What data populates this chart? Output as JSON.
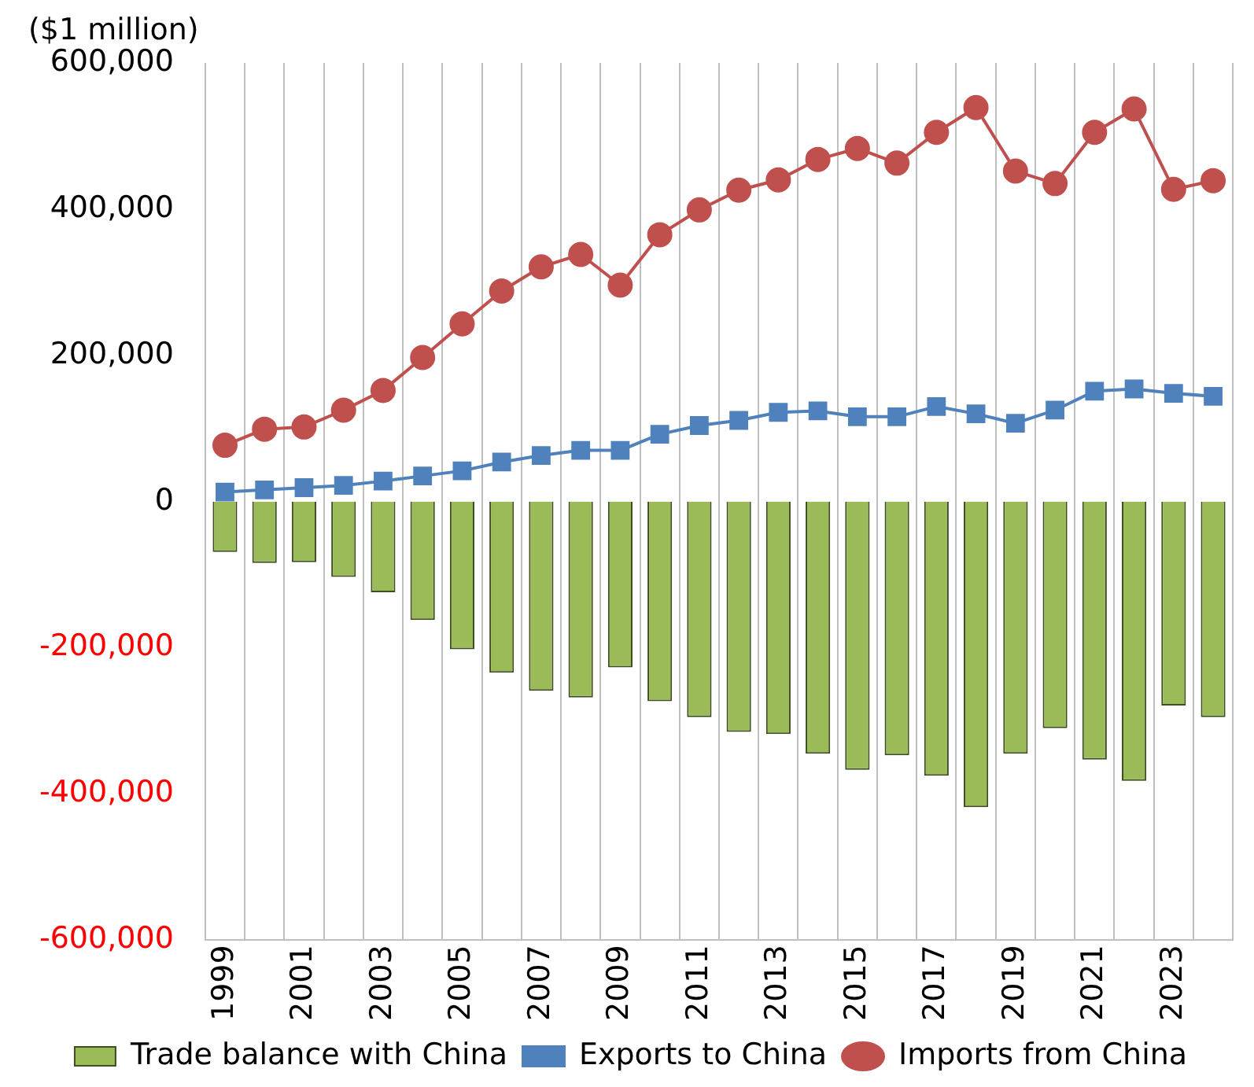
{
  "chart_data": {
    "type": "bar",
    "ylabel": "($1 million)",
    "categories": [
      "1999",
      null,
      "2001",
      null,
      "2003",
      null,
      "2005",
      null,
      "2007",
      null,
      "2009",
      null,
      "2011",
      null,
      "2013",
      null,
      "2015",
      null,
      "2017",
      null,
      "2019",
      null,
      "2021",
      null,
      "2023",
      null
    ],
    "series": [
      {
        "name": "Trade balance with China",
        "color": "#9bbb59",
        "values": [
          -69000,
          -84000,
          -83000,
          -103000,
          -124000,
          -162000,
          -202000,
          -234000,
          -259000,
          -268000,
          -227000,
          -273000,
          -295000,
          -315000,
          -318000,
          -345000,
          -367000,
          -347000,
          -375000,
          -418000,
          -345000,
          -310000,
          -353000,
          -382000,
          -279000,
          -295000
        ]
      },
      {
        "name": "Exports to China",
        "type": "line",
        "marker": "square",
        "color": "#4f81bd",
        "values": [
          13000,
          16000,
          19000,
          22000,
          28000,
          35000,
          42000,
          54000,
          63000,
          70000,
          70000,
          92000,
          104000,
          111000,
          122000,
          124000,
          116000,
          116000,
          130000,
          120000,
          107000,
          125000,
          151000,
          154000,
          148000,
          144000
        ]
      },
      {
        "name": "Imports from China",
        "type": "line",
        "marker": "circle",
        "color": "#c0504d",
        "values": [
          77000,
          99000,
          102000,
          125000,
          152000,
          197000,
          243000,
          288000,
          321000,
          338000,
          296000,
          365000,
          399000,
          426000,
          440000,
          468000,
          483000,
          463000,
          505000,
          539000,
          452000,
          435000,
          505000,
          537000,
          427000,
          439000
        ]
      }
    ],
    "ylim": [
      -600000,
      600000
    ],
    "yticks": [
      {
        "value": -600000,
        "label": "-600,000"
      },
      {
        "value": -400000,
        "label": "-400,000"
      },
      {
        "value": -200000,
        "label": "-200,000"
      },
      0,
      {
        "value": 200000,
        "label": "200,000"
      },
      {
        "value": 400000,
        "label": "400,000"
      },
      {
        "value": 600000,
        "label": "600,000"
      }
    ],
    "grid": "x",
    "legend": "bottom"
  }
}
